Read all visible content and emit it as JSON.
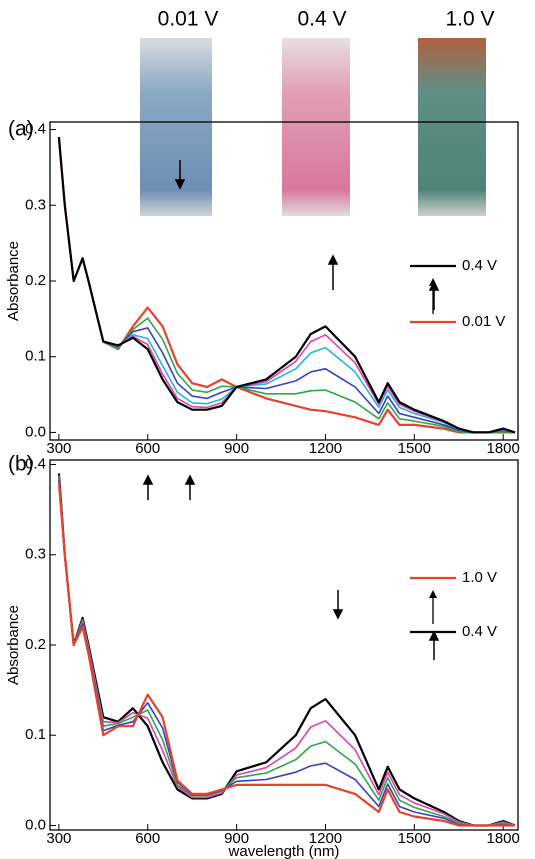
{
  "chart_data": [
    {
      "type": "line",
      "panel_label": "(a)",
      "photo_labels": [
        "0.01 V",
        "0.4 V",
        "1.0 V"
      ],
      "ylabel": "Absorbance",
      "x": [
        300,
        320,
        350,
        380,
        400,
        450,
        500,
        550,
        600,
        650,
        700,
        750,
        800,
        850,
        900,
        1000,
        1100,
        1150,
        1200,
        1300,
        1380,
        1410,
        1450,
        1500,
        1600,
        1650,
        1700,
        1750,
        1800,
        1840
      ],
      "xlim": [
        270,
        1850
      ],
      "xticks": [
        300,
        600,
        900,
        1200,
        1500,
        1800
      ],
      "ylim": [
        -0.01,
        0.41
      ],
      "yticks": [
        {
          "value": 0,
          "label": "0.0"
        },
        0.1,
        0.2,
        0.3,
        0.4
      ],
      "series": [
        {
          "name": "0.01 V",
          "color": "#e8412c",
          "values": [
            0.39,
            0.3,
            0.2,
            0.23,
            0.2,
            0.12,
            0.11,
            0.14,
            0.165,
            0.14,
            0.09,
            0.065,
            0.06,
            0.07,
            0.06,
            0.045,
            0.035,
            0.03,
            0.028,
            0.02,
            0.01,
            0.03,
            0.01,
            0.01,
            0.005,
            0,
            0,
            0,
            0,
            0
          ]
        },
        {
          "color": "#2ea84a",
          "values": [
            0.39,
            0.3,
            0.2,
            0.23,
            0.2,
            0.12,
            0.111,
            0.136,
            0.151,
            0.123,
            0.078,
            0.056,
            0.053,
            0.061,
            0.06,
            0.051,
            0.051,
            0.055,
            0.056,
            0.04,
            0.018,
            0.039,
            0.018,
            0.015,
            0.008,
            0.001,
            0,
            0,
            0.001,
            0
          ]
        },
        {
          "color": "#3a3fc4",
          "values": [
            0.39,
            0.3,
            0.2,
            0.23,
            0.2,
            0.12,
            0.113,
            0.133,
            0.138,
            0.105,
            0.065,
            0.048,
            0.045,
            0.053,
            0.06,
            0.058,
            0.068,
            0.08,
            0.084,
            0.06,
            0.025,
            0.048,
            0.025,
            0.02,
            0.01,
            0.003,
            0,
            0,
            0.003,
            0
          ]
        },
        {
          "color": "#28b4e0",
          "values": [
            0.39,
            0.3,
            0.2,
            0.23,
            0.2,
            0.12,
            0.114,
            0.129,
            0.124,
            0.088,
            0.053,
            0.039,
            0.038,
            0.044,
            0.06,
            0.064,
            0.084,
            0.105,
            0.112,
            0.08,
            0.033,
            0.056,
            0.033,
            0.025,
            0.013,
            0.004,
            0,
            0,
            0.004,
            0
          ]
        },
        {
          "color": "#e040b0",
          "values": [
            0.39,
            0.3,
            0.2,
            0.23,
            0.2,
            0.12,
            0.115,
            0.127,
            0.116,
            0.077,
            0.045,
            0.034,
            0.033,
            0.039,
            0.06,
            0.067,
            0.094,
            0.12,
            0.129,
            0.092,
            0.037,
            0.061,
            0.037,
            0.028,
            0.014,
            0.005,
            0,
            0,
            0.005,
            0
          ]
        },
        {
          "name": "0.4 V",
          "color": "#000000",
          "values": [
            0.39,
            0.3,
            0.2,
            0.23,
            0.2,
            0.12,
            0.115,
            0.125,
            0.11,
            0.07,
            0.04,
            0.03,
            0.03,
            0.035,
            0.06,
            0.07,
            0.1,
            0.13,
            0.14,
            0.1,
            0.04,
            0.065,
            0.04,
            0.03,
            0.015,
            0.005,
            0,
            0,
            0.005,
            0
          ]
        }
      ]
    },
    {
      "type": "line",
      "panel_label": "(b)",
      "ylabel": "Absorbance",
      "xlabel": "wavelength (nm)",
      "x": [
        300,
        320,
        350,
        380,
        400,
        450,
        500,
        550,
        600,
        650,
        700,
        750,
        800,
        850,
        900,
        1000,
        1100,
        1150,
        1200,
        1300,
        1380,
        1410,
        1450,
        1500,
        1600,
        1650,
        1700,
        1750,
        1800,
        1840
      ],
      "xlim": [
        270,
        1850
      ],
      "xticks": [
        300,
        600,
        900,
        1200,
        1500,
        1800
      ],
      "ylim": [
        -0.005,
        0.405
      ],
      "yticks": [
        {
          "value": 0,
          "label": "0.0"
        },
        0.1,
        0.2,
        0.3,
        0.4
      ],
      "series": [
        {
          "name": "0.4 V",
          "color": "#000000",
          "values": [
            0.39,
            0.3,
            0.2,
            0.23,
            0.2,
            0.12,
            0.115,
            0.13,
            0.11,
            0.07,
            0.04,
            0.03,
            0.03,
            0.035,
            0.06,
            0.07,
            0.1,
            0.13,
            0.14,
            0.1,
            0.04,
            0.065,
            0.04,
            0.03,
            0.015,
            0.005,
            0,
            0,
            0.005,
            0
          ]
        },
        {
          "color": "#e040b0",
          "values": [
            0.388,
            0.3,
            0.2,
            0.228,
            0.198,
            0.115,
            0.114,
            0.125,
            0.119,
            0.083,
            0.043,
            0.031,
            0.031,
            0.036,
            0.056,
            0.064,
            0.086,
            0.109,
            0.116,
            0.084,
            0.034,
            0.059,
            0.034,
            0.025,
            0.013,
            0.004,
            0,
            0,
            0.004,
            0
          ]
        },
        {
          "color": "#2ea84a",
          "values": [
            0.385,
            0.3,
            0.2,
            0.225,
            0.195,
            0.11,
            0.113,
            0.12,
            0.128,
            0.095,
            0.045,
            0.033,
            0.033,
            0.038,
            0.053,
            0.058,
            0.073,
            0.088,
            0.093,
            0.068,
            0.028,
            0.053,
            0.028,
            0.02,
            0.01,
            0.003,
            0,
            0,
            0.003,
            0
          ]
        },
        {
          "color": "#3a3fc4",
          "values": [
            0.383,
            0.3,
            0.2,
            0.223,
            0.193,
            0.105,
            0.111,
            0.115,
            0.136,
            0.108,
            0.048,
            0.034,
            0.034,
            0.039,
            0.049,
            0.051,
            0.059,
            0.066,
            0.069,
            0.051,
            0.021,
            0.046,
            0.021,
            0.015,
            0.008,
            0.001,
            0,
            0,
            0.001,
            0
          ]
        },
        {
          "name": "1.0 V",
          "color": "#e8412c",
          "values": [
            0.38,
            0.3,
            0.2,
            0.22,
            0.19,
            0.1,
            0.11,
            0.11,
            0.145,
            0.12,
            0.05,
            0.035,
            0.035,
            0.04,
            0.045,
            0.045,
            0.045,
            0.045,
            0.045,
            0.035,
            0.015,
            0.04,
            0.015,
            0.01,
            0.005,
            0,
            0,
            0,
            0,
            0
          ]
        }
      ]
    }
  ]
}
